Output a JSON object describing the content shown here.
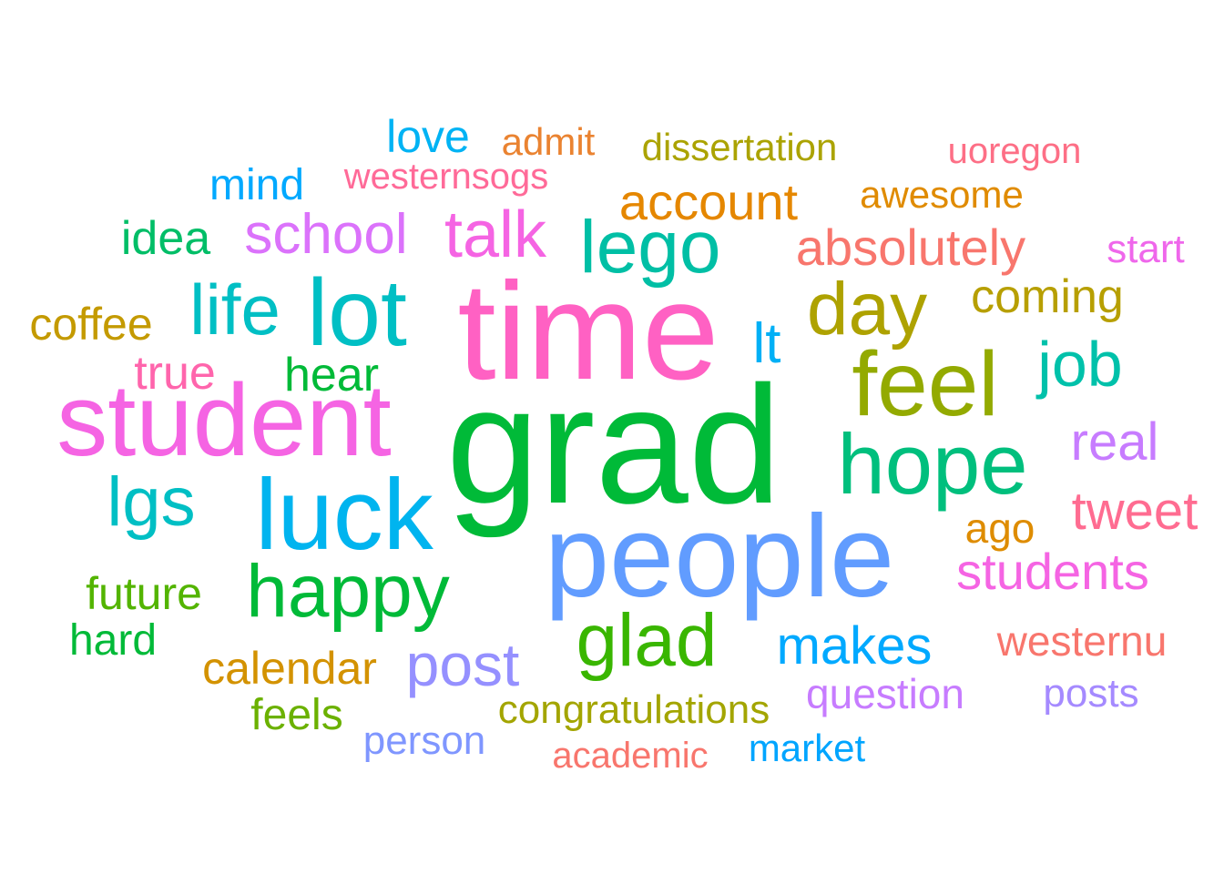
{
  "words": [
    {
      "text": "grad",
      "color": "#00BA38"
    },
    {
      "text": "time",
      "color": "#FF61C3"
    },
    {
      "text": "people",
      "color": "#619CFF"
    },
    {
      "text": "student",
      "color": "#F564E3"
    },
    {
      "text": "lot",
      "color": "#00BFC4"
    },
    {
      "text": "luck",
      "color": "#00B4EF"
    },
    {
      "text": "feel",
      "color": "#93AA00"
    },
    {
      "text": "hope",
      "color": "#00BF7D"
    },
    {
      "text": "happy",
      "color": "#00BA38"
    },
    {
      "text": "day",
      "color": "#AEA200"
    },
    {
      "text": "glad",
      "color": "#39B600"
    },
    {
      "text": "lego",
      "color": "#00BFA5"
    },
    {
      "text": "talk",
      "color": "#F564E3"
    },
    {
      "text": "life",
      "color": "#00BFC4"
    },
    {
      "text": "job",
      "color": "#00C1AA"
    },
    {
      "text": "lgs",
      "color": "#00BFC4"
    },
    {
      "text": "post",
      "color": "#9590FF"
    },
    {
      "text": "makes",
      "color": "#00A9FF"
    },
    {
      "text": "school",
      "color": "#DB72FB"
    },
    {
      "text": "account",
      "color": "#E58700"
    },
    {
      "text": "absolutely",
      "color": "#F8766D"
    },
    {
      "text": "real",
      "color": "#C77CFF"
    },
    {
      "text": "students",
      "color": "#F564E3"
    },
    {
      "text": "tweet",
      "color": "#FF6C91"
    },
    {
      "text": "coming",
      "color": "#B79F00"
    },
    {
      "text": "lt",
      "color": "#00B0F6"
    },
    {
      "text": "hear",
      "color": "#00BA38"
    },
    {
      "text": "true",
      "color": "#FF65AC"
    },
    {
      "text": "idea",
      "color": "#00BE67"
    },
    {
      "text": "coffee",
      "color": "#C49A00"
    },
    {
      "text": "future",
      "color": "#53B400"
    },
    {
      "text": "hard",
      "color": "#00BA38"
    },
    {
      "text": "calendar",
      "color": "#D39200"
    },
    {
      "text": "congratulations",
      "color": "#A3A500"
    },
    {
      "text": "feels",
      "color": "#6BB100"
    },
    {
      "text": "person",
      "color": "#7F96FF"
    },
    {
      "text": "academic",
      "color": "#F8766D"
    },
    {
      "text": "market",
      "color": "#00A5FF"
    },
    {
      "text": "question",
      "color": "#C77CFF"
    },
    {
      "text": "posts",
      "color": "#A58AFF"
    },
    {
      "text": "westernu",
      "color": "#F8766D"
    },
    {
      "text": "ago",
      "color": "#DE8C00"
    },
    {
      "text": "start",
      "color": "#EF67EB"
    },
    {
      "text": "awesome",
      "color": "#E08B00"
    },
    {
      "text": "uoregon",
      "color": "#FD6F86"
    },
    {
      "text": "dissertation",
      "color": "#ABA300"
    },
    {
      "text": "admit",
      "color": "#EA8331"
    },
    {
      "text": "love",
      "color": "#00B3F4"
    },
    {
      "text": "mind",
      "color": "#00A9FF"
    },
    {
      "text": "westernsogs",
      "color": "#FF6A98"
    }
  ]
}
